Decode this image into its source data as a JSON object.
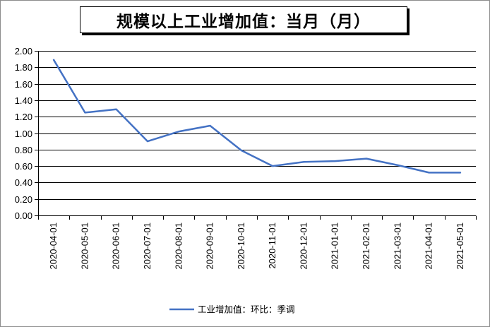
{
  "chart_data": {
    "type": "line",
    "title": "规模以上工业增加值：当月（月）",
    "categories": [
      "2020-04-01",
      "2020-05-01",
      "2020-06-01",
      "2020-07-01",
      "2020-08-01",
      "2020-09-01",
      "2020-10-01",
      "2020-11-01",
      "2020-12-01",
      "2021-01-01",
      "2021-02-01",
      "2021-03-01",
      "2021-04-01",
      "2021-05-01"
    ],
    "series": [
      {
        "name": "工业增加值：环比：季调",
        "values": [
          1.89,
          1.25,
          1.29,
          0.9,
          1.02,
          1.09,
          0.79,
          0.6,
          0.65,
          0.66,
          0.69,
          0.61,
          0.52,
          0.52
        ]
      }
    ],
    "yticks": [
      "0.00",
      "0.20",
      "0.40",
      "0.60",
      "0.80",
      "1.00",
      "1.20",
      "1.40",
      "1.60",
      "1.80",
      "2.00"
    ],
    "ylim": [
      0,
      2
    ],
    "grid": true,
    "legend_position": "bottom",
    "line_color": "#4472c4"
  }
}
